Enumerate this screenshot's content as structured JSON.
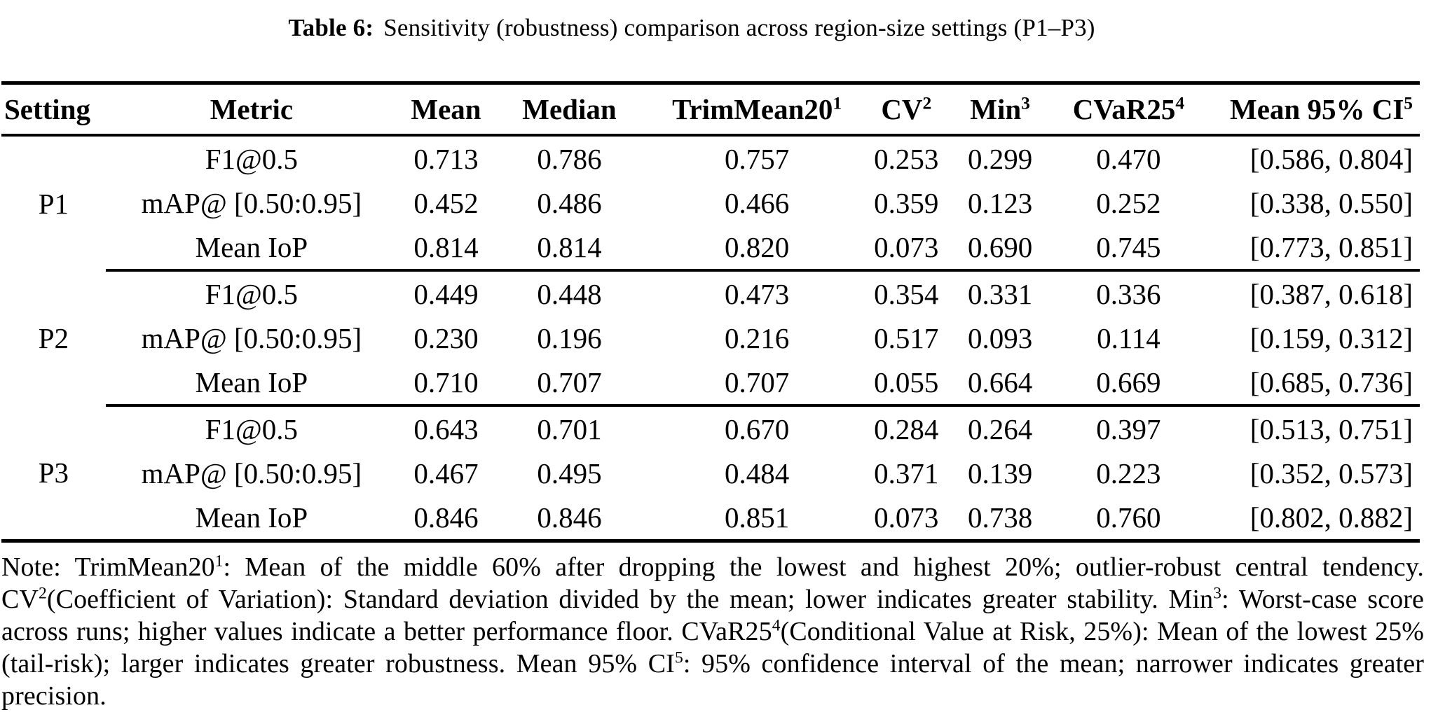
{
  "caption": {
    "label": "Table 6:",
    "text": "Sensitivity (robustness) comparison across region-size settings (P1–P3)"
  },
  "table": {
    "headers": [
      {
        "label": "Setting",
        "sup": ""
      },
      {
        "label": "Metric",
        "sup": ""
      },
      {
        "label": "Mean",
        "sup": ""
      },
      {
        "label": "Median",
        "sup": ""
      },
      {
        "label": "TrimMean20",
        "sup": "1"
      },
      {
        "label": "CV",
        "sup": "2"
      },
      {
        "label": "Min",
        "sup": "3"
      },
      {
        "label": "CVaR25",
        "sup": "4"
      },
      {
        "label": "Mean 95% CI",
        "sup": "5"
      }
    ],
    "col_widths_pct": [
      7.35,
      20.57,
      6.86,
      10.53,
      15.92,
      5.14,
      8.08,
      10.04,
      15.51
    ],
    "groups": [
      {
        "setting": "P1",
        "rows": [
          {
            "metric": "F1@0.5",
            "values": [
              "0.713",
              "0.786",
              "0.757",
              "0.253",
              "0.299",
              "0.470",
              "[0.586, 0.804]"
            ]
          },
          {
            "metric": "mAP@ [0.50:0.95]",
            "values": [
              "0.452",
              "0.486",
              "0.466",
              "0.359",
              "0.123",
              "0.252",
              "[0.338, 0.550]"
            ]
          },
          {
            "metric": "Mean IoP",
            "values": [
              "0.814",
              "0.814",
              "0.820",
              "0.073",
              "0.690",
              "0.745",
              "[0.773, 0.851]"
            ]
          }
        ]
      },
      {
        "setting": "P2",
        "rows": [
          {
            "metric": "F1@0.5",
            "values": [
              "0.449",
              "0.448",
              "0.473",
              "0.354",
              "0.331",
              "0.336",
              "[0.387, 0.618]"
            ]
          },
          {
            "metric": "mAP@ [0.50:0.95]",
            "values": [
              "0.230",
              "0.196",
              "0.216",
              "0.517",
              "0.093",
              "0.114",
              "[0.159, 0.312]"
            ]
          },
          {
            "metric": "Mean IoP",
            "values": [
              "0.710",
              "0.707",
              "0.707",
              "0.055",
              "0.664",
              "0.669",
              "[0.685, 0.736]"
            ]
          }
        ]
      },
      {
        "setting": "P3",
        "rows": [
          {
            "metric": "F1@0.5",
            "values": [
              "0.643",
              "0.701",
              "0.670",
              "0.284",
              "0.264",
              "0.397",
              "[0.513, 0.751]"
            ]
          },
          {
            "metric": "mAP@ [0.50:0.95]",
            "values": [
              "0.467",
              "0.495",
              "0.484",
              "0.371",
              "0.139",
              "0.223",
              "[0.352, 0.573]"
            ]
          },
          {
            "metric": "Mean IoP",
            "values": [
              "0.846",
              "0.846",
              "0.851",
              "0.073",
              "0.738",
              "0.760",
              "[0.802, 0.882]"
            ]
          }
        ]
      }
    ]
  },
  "note": {
    "segments": [
      {
        "text": "Note: TrimMean20"
      },
      {
        "sup": "1"
      },
      {
        "text": ": Mean of the middle 60% after dropping the lowest and highest 20%; outlier-robust central tendency. CV"
      },
      {
        "sup": "2"
      },
      {
        "text": "(Coefficient of Variation): Standard deviation divided by the mean; lower indicates greater stability. Min"
      },
      {
        "sup": "3"
      },
      {
        "text": ": Worst-case score across runs; higher values indicate a better performance floor. CVaR25"
      },
      {
        "sup": "4"
      },
      {
        "text": "(Conditional Value at Risk, 25%): Mean of the lowest 25% (tail-risk); larger indicates greater robustness. Mean 95% CI"
      },
      {
        "sup": "5"
      },
      {
        "text": ": 95% confidence interval of the mean; narrower indicates greater precision."
      }
    ]
  }
}
